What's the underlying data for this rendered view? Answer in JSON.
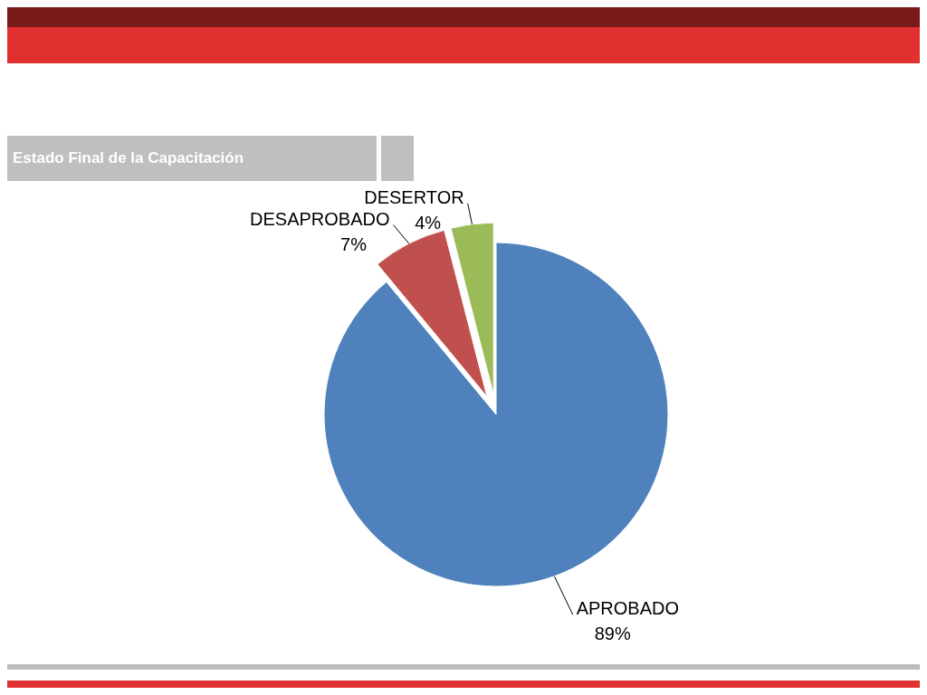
{
  "chart_data": {
    "type": "pie",
    "title": "Estado Final de la Capacitación",
    "categories": [
      "APROBADO",
      "DESAPROBADO",
      "DESERTOR"
    ],
    "values": [
      89,
      7,
      4
    ],
    "value_labels": [
      "89%",
      "7%",
      "4%"
    ],
    "colors": [
      "#4f81bd",
      "#c0504d",
      "#9bbb59"
    ]
  }
}
